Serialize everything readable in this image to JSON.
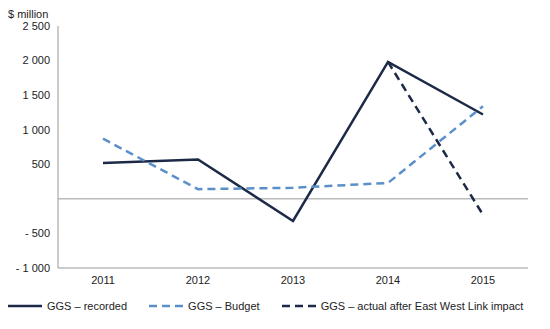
{
  "chart_data": {
    "type": "line",
    "y_label": "$ million",
    "categories": [
      "2011",
      "2012",
      "2013",
      "2014",
      "2015"
    ],
    "series": [
      {
        "name": "GGS – recorded",
        "color": "#1c2a48",
        "line_style": "solid",
        "values": [
          520,
          570,
          -320,
          1980,
          1220
        ]
      },
      {
        "name": "GGS – Budget",
        "color": "#5b8fc9",
        "line_style": "dashed",
        "values": [
          870,
          140,
          160,
          230,
          1340
        ]
      },
      {
        "name": "GGS – actual after East West Link impact",
        "color": "#1c2a48",
        "line_style": "dashed",
        "values": [
          null,
          null,
          null,
          1980,
          -230
        ]
      }
    ],
    "ylim": [
      -1000,
      2500
    ],
    "yticks": [
      {
        "value": -1000,
        "label": "- 1 000"
      },
      {
        "value": -500,
        "label": "- 500"
      },
      500,
      {
        "value": 1000,
        "label": "1 000"
      },
      {
        "value": 1500,
        "label": "1 500"
      },
      {
        "value": 2000,
        "label": "2 000"
      },
      {
        "value": 2500,
        "label": "2 500"
      }
    ],
    "grid": false,
    "legend": "bottom"
  }
}
